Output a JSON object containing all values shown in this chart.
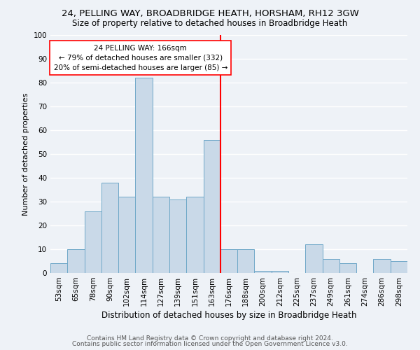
{
  "title1": "24, PELLING WAY, BROADBRIDGE HEATH, HORSHAM, RH12 3GW",
  "title2": "Size of property relative to detached houses in Broadbridge Heath",
  "xlabel": "Distribution of detached houses by size in Broadbridge Heath",
  "ylabel": "Number of detached properties",
  "footer1": "Contains HM Land Registry data © Crown copyright and database right 2024.",
  "footer2": "Contains public sector information licensed under the Open Government Licence v3.0.",
  "categories": [
    "53sqm",
    "65sqm",
    "78sqm",
    "90sqm",
    "102sqm",
    "114sqm",
    "127sqm",
    "139sqm",
    "151sqm",
    "163sqm",
    "176sqm",
    "188sqm",
    "200sqm",
    "212sqm",
    "225sqm",
    "237sqm",
    "249sqm",
    "261sqm",
    "274sqm",
    "286sqm",
    "298sqm"
  ],
  "values": [
    4,
    10,
    26,
    38,
    32,
    82,
    32,
    31,
    32,
    56,
    10,
    10,
    1,
    1,
    0,
    12,
    6,
    4,
    0,
    6,
    5
  ],
  "bar_color": "#c9d9e8",
  "bar_edge_color": "#6fa8c8",
  "property_line_x": 9.5,
  "annotation_text": "24 PELLING WAY: 166sqm\n← 79% of detached houses are smaller (332)\n20% of semi-detached houses are larger (85) →",
  "annotation_box_color": "white",
  "annotation_box_edge_color": "red",
  "vline_color": "red",
  "ylim": [
    0,
    100
  ],
  "yticks": [
    0,
    10,
    20,
    30,
    40,
    50,
    60,
    70,
    80,
    90,
    100
  ],
  "background_color": "#eef2f7",
  "grid_color": "white",
  "title1_fontsize": 9.5,
  "title2_fontsize": 8.5,
  "xlabel_fontsize": 8.5,
  "ylabel_fontsize": 8,
  "tick_fontsize": 7.5,
  "annotation_fontsize": 7.5,
  "footer_fontsize": 6.5
}
